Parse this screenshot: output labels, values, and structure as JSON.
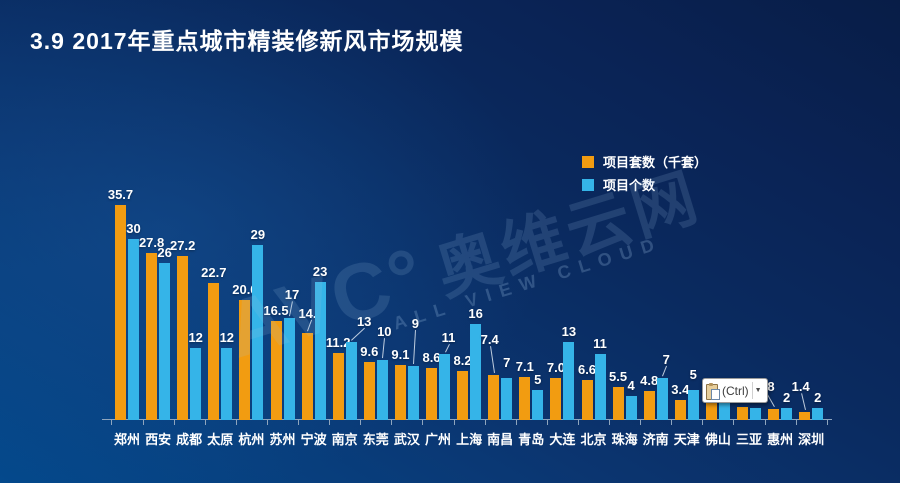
{
  "title": "3.9  2017年重点城市精装修新风市场规模",
  "watermark": {
    "logo": "AVC°",
    "cn": "奥维云网",
    "en": "ALL VIEW CLOUD"
  },
  "paste_popup": {
    "label": "(Ctrl)",
    "caret": "▼"
  },
  "colors": {
    "background_dark": "#0A2355",
    "background_light": "#04498C",
    "bar_orange": "#F29C11",
    "bar_cyan": "#35B4E8",
    "axis": "#8FA5BD",
    "text": "#FFFFFF"
  },
  "chart_data": {
    "type": "bar",
    "title": "2017年重点城市精装修新风市场规模",
    "xlabel": "",
    "ylabel": "",
    "ylim": [
      0,
      40
    ],
    "grid": false,
    "y_axis_visible": false,
    "legend_position": "top-right",
    "categories": [
      "郑州",
      "西安",
      "成都",
      "太原",
      "杭州",
      "苏州",
      "宁波",
      "南京",
      "东莞",
      "武汉",
      "广州",
      "上海",
      "南昌",
      "青岛",
      "大连",
      "北京",
      "珠海",
      "济南",
      "天津",
      "佛山",
      "三亚",
      "惠州",
      "深圳"
    ],
    "series": [
      {
        "name": "项目套数（千套）",
        "color": "#F29C11",
        "values": [
          35.7,
          27.8,
          27.2,
          22.7,
          20.0,
          16.5,
          14.4,
          11.2,
          9.6,
          9.1,
          8.6,
          8.2,
          7.4,
          7.1,
          7.0,
          6.6,
          5.5,
          4.8,
          3.4,
          3.3,
          2.2,
          1.8,
          1.4
        ],
        "labels": [
          "35.7",
          "27.8",
          "27.2",
          "22.7",
          "20.0",
          "16.5",
          "14.4",
          "11.2",
          "9.6",
          "9.1",
          "8.6",
          "8.2",
          "7.4",
          "7.1",
          "7.0",
          "6.6",
          "5.5",
          "4.8",
          "3.4",
          "3.3",
          "2.2",
          "1.8",
          "1.4"
        ],
        "label_offsets": {
          "6": [
            4,
            -9
          ],
          "12": [
            -4,
            -25
          ],
          "21": [
            -8,
            -12
          ],
          "22": [
            -4,
            -15
          ]
        }
      },
      {
        "name": "项目个数",
        "color": "#35B4E8",
        "values": [
          30,
          26,
          12,
          12,
          29,
          17,
          23,
          13,
          10,
          9,
          11,
          16,
          7,
          5,
          13,
          11,
          4,
          7,
          5,
          3,
          2,
          2,
          2
        ],
        "labels": [
          "30",
          "26",
          "12",
          "12",
          "29",
          "17",
          "23",
          "13",
          "10",
          "9",
          "11",
          "16",
          "7",
          "5",
          "13",
          "11",
          "4",
          "7",
          "5",
          "",
          "2",
          "2",
          "2"
        ],
        "label_offsets": {
          "5": [
            3,
            -13
          ],
          "7": [
            13,
            -10
          ],
          "8": [
            2,
            -18
          ],
          "9": [
            2,
            -32
          ],
          "10": [
            4,
            -6
          ],
          "12": [
            0,
            -5
          ],
          "17": [
            4,
            -8
          ],
          "18": [
            0,
            -5
          ]
        }
      }
    ]
  }
}
